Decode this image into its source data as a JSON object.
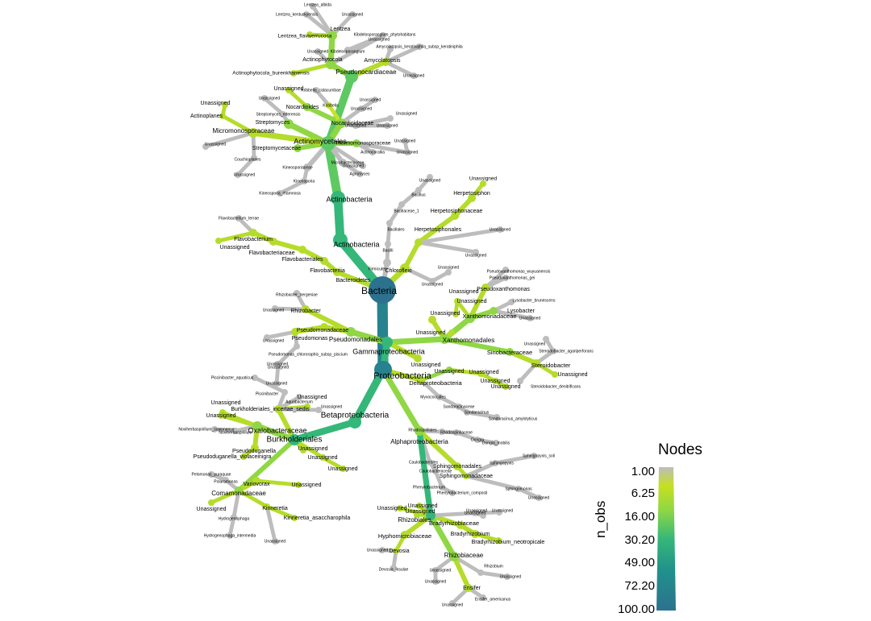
{
  "legend": {
    "title": "Nodes",
    "variable": "n_obs",
    "ticks": [
      "1.00",
      "6.25",
      "16.00",
      "30.20",
      "49.00",
      "72.20",
      "100.00"
    ],
    "colors": [
      "#bdbdbd",
      "#c5e021",
      "#6ece58",
      "#22a884",
      "#26828e",
      "#2a788e",
      "#2c728e"
    ]
  },
  "tree": {
    "root": "Bacteria",
    "phyla": [
      "Actinobacteria",
      "Proteobacteria",
      "Bacteroidetes",
      "Chloroflexi",
      "Firmicutes"
    ],
    "labels": [
      "Bacteria",
      "Actinobacteria",
      "Actinobacteria",
      "Actinomycetales",
      "Pseudonocardiaceae",
      "Actinophytocola",
      "Actinophytocola_burenkhanensis",
      "Lentzea",
      "Lentzea_flaviverrucosa",
      "Lentzea_albida",
      "Lentzea_kentuckyensis",
      "Unassigned",
      "Kibdelosporangium_phytohabitans",
      "Kibdelosporangium",
      "Amycolatopsis",
      "Amycolatopsis_keratiniphila_subsp_keratiniphila",
      "Unassigned",
      "Unassigned",
      "Unassigned",
      "Nocardioidaceae",
      "Nocardioides",
      "Kribbella",
      "Kribbella_catacumbae",
      "Streptomyces",
      "Streptomyces_ederensis",
      "Streptomycetaceae",
      "Micromonosporaceae",
      "Actinoplanes",
      "Couchioplanes",
      "Unassigned",
      "Unassigned",
      "Unassigned",
      "Unassigned",
      "Thermomonosporaceae",
      "Actinocorallia",
      "Microbacteriaceae",
      "Agromyces",
      "Kineosporiaceae",
      "Kineosporia",
      "Kineosporia_rhamnosa",
      "Unassigned",
      "Unassigned",
      "Unassigned",
      "Unassigned",
      "Unassigned",
      "Unassigned",
      "Unassigned",
      "Unassigned",
      "Unassigned",
      "Chloroflexi",
      "Herpetosiphonales",
      "Herpetosiphonaceae",
      "Herpetosiphon",
      "Unassigned",
      "Firmicutes",
      "Bacilli",
      "Bacillales",
      "Bacillaceae_1",
      "Bacillus",
      "Unassigned",
      "Unassigned",
      "Unassigned",
      "Unassigned",
      "Unassigned",
      "Bacteroidetes",
      "Flavobacteriia",
      "Flavobacteriales",
      "Flavobacteriaceae",
      "Flavobacterium",
      "Flavobacterium_terrae",
      "Unassigned",
      "Proteobacteria",
      "Gammaproteobacteria",
      "Pseudomonadales",
      "Pseudomonadaceae",
      "Pseudomonas",
      "Pseudomonas_chlororaphis_subsp_piscium",
      "Unassigned",
      "Rhizobacter",
      "Rhizobacter_bergeniae",
      "Unassigned",
      "Xanthomonadales",
      "Xanthomonadaceae",
      "Pseudoxanthomonas",
      "Pseudoxanthomonas_wuyuanensis",
      "Pseudoxanthomonas_gei",
      "Lysobacter",
      "Lysobacter_brunescens",
      "Sinobacteraceae",
      "Steroidobacter",
      "Steroidobacter_agariperforans",
      "Steroidobacter_denitrificans",
      "Unassigned",
      "Unassigned",
      "Unassigned",
      "Unassigned",
      "Unassigned",
      "Unassigned",
      "Unassigned",
      "Unassigned",
      "Unassigned",
      "Unassigned",
      "Deltaproteobacteria",
      "Myxococcales",
      "Sandaracinaceae",
      "Sandaracinus",
      "Sandaracinus_amylolyticus",
      "Unassigned",
      "Unassigned",
      "Unassigned",
      "Unassigned",
      "Betaproteobacteria",
      "Burkholderiales",
      "Oxalobacteraceae",
      "Noviherbaspirillum",
      "Noviherbaspirillum_suwonense",
      "Pseudoduganella",
      "Pseudoduganella_violaceinigra",
      "Burkholderiales_incertae_sedis",
      "Aquabacterium",
      "Piscinibacter",
      "Piscinibacter_aquaticus",
      "Comamonadaceae",
      "Variovorax",
      "Polaromonas",
      "Pelomonas_puraquae",
      "Kinneretia",
      "Kinneretia_asaccharophila",
      "Hydrogenophaga",
      "Hydrogenophaga_intermedia",
      "Unassigned",
      "Unassigned",
      "Unassigned",
      "Unassigned",
      "Unassigned",
      "Unassigned",
      "Unassigned",
      "Unassigned",
      "Unassigned",
      "Unassigned",
      "Unassigned",
      "Alphaproteobacteria",
      "Rhodospirillales",
      "Rhodospirillaceae",
      "Dongia",
      "Dongia_mobilis",
      "Sphingomonadales",
      "Sphingomonadaceae",
      "Sphingopyxis",
      "Sphingopyxis_soli",
      "Sphingomonas",
      "Caulobacterales",
      "Caulobacteraceae",
      "Phenylobacterium",
      "Phenylobacterium_composti",
      "Rhizobiales",
      "Bradyrhizobiaceae",
      "Bradyrhizobium",
      "Bradyrhizobium_neotropicale",
      "Hyphomicrobiaceae",
      "Devosia",
      "Devosia_insulae",
      "Rhizobiaceae",
      "Rhizobium",
      "Ensifer",
      "Ensifer_americanus",
      "Unassigned",
      "Unassigned",
      "Unassigned",
      "Unassigned",
      "Unassigned",
      "Unassigned",
      "Unassigned",
      "Unassigned",
      "Unassigned",
      "Unassigned",
      "Unassigned",
      "Unassigned"
    ]
  }
}
